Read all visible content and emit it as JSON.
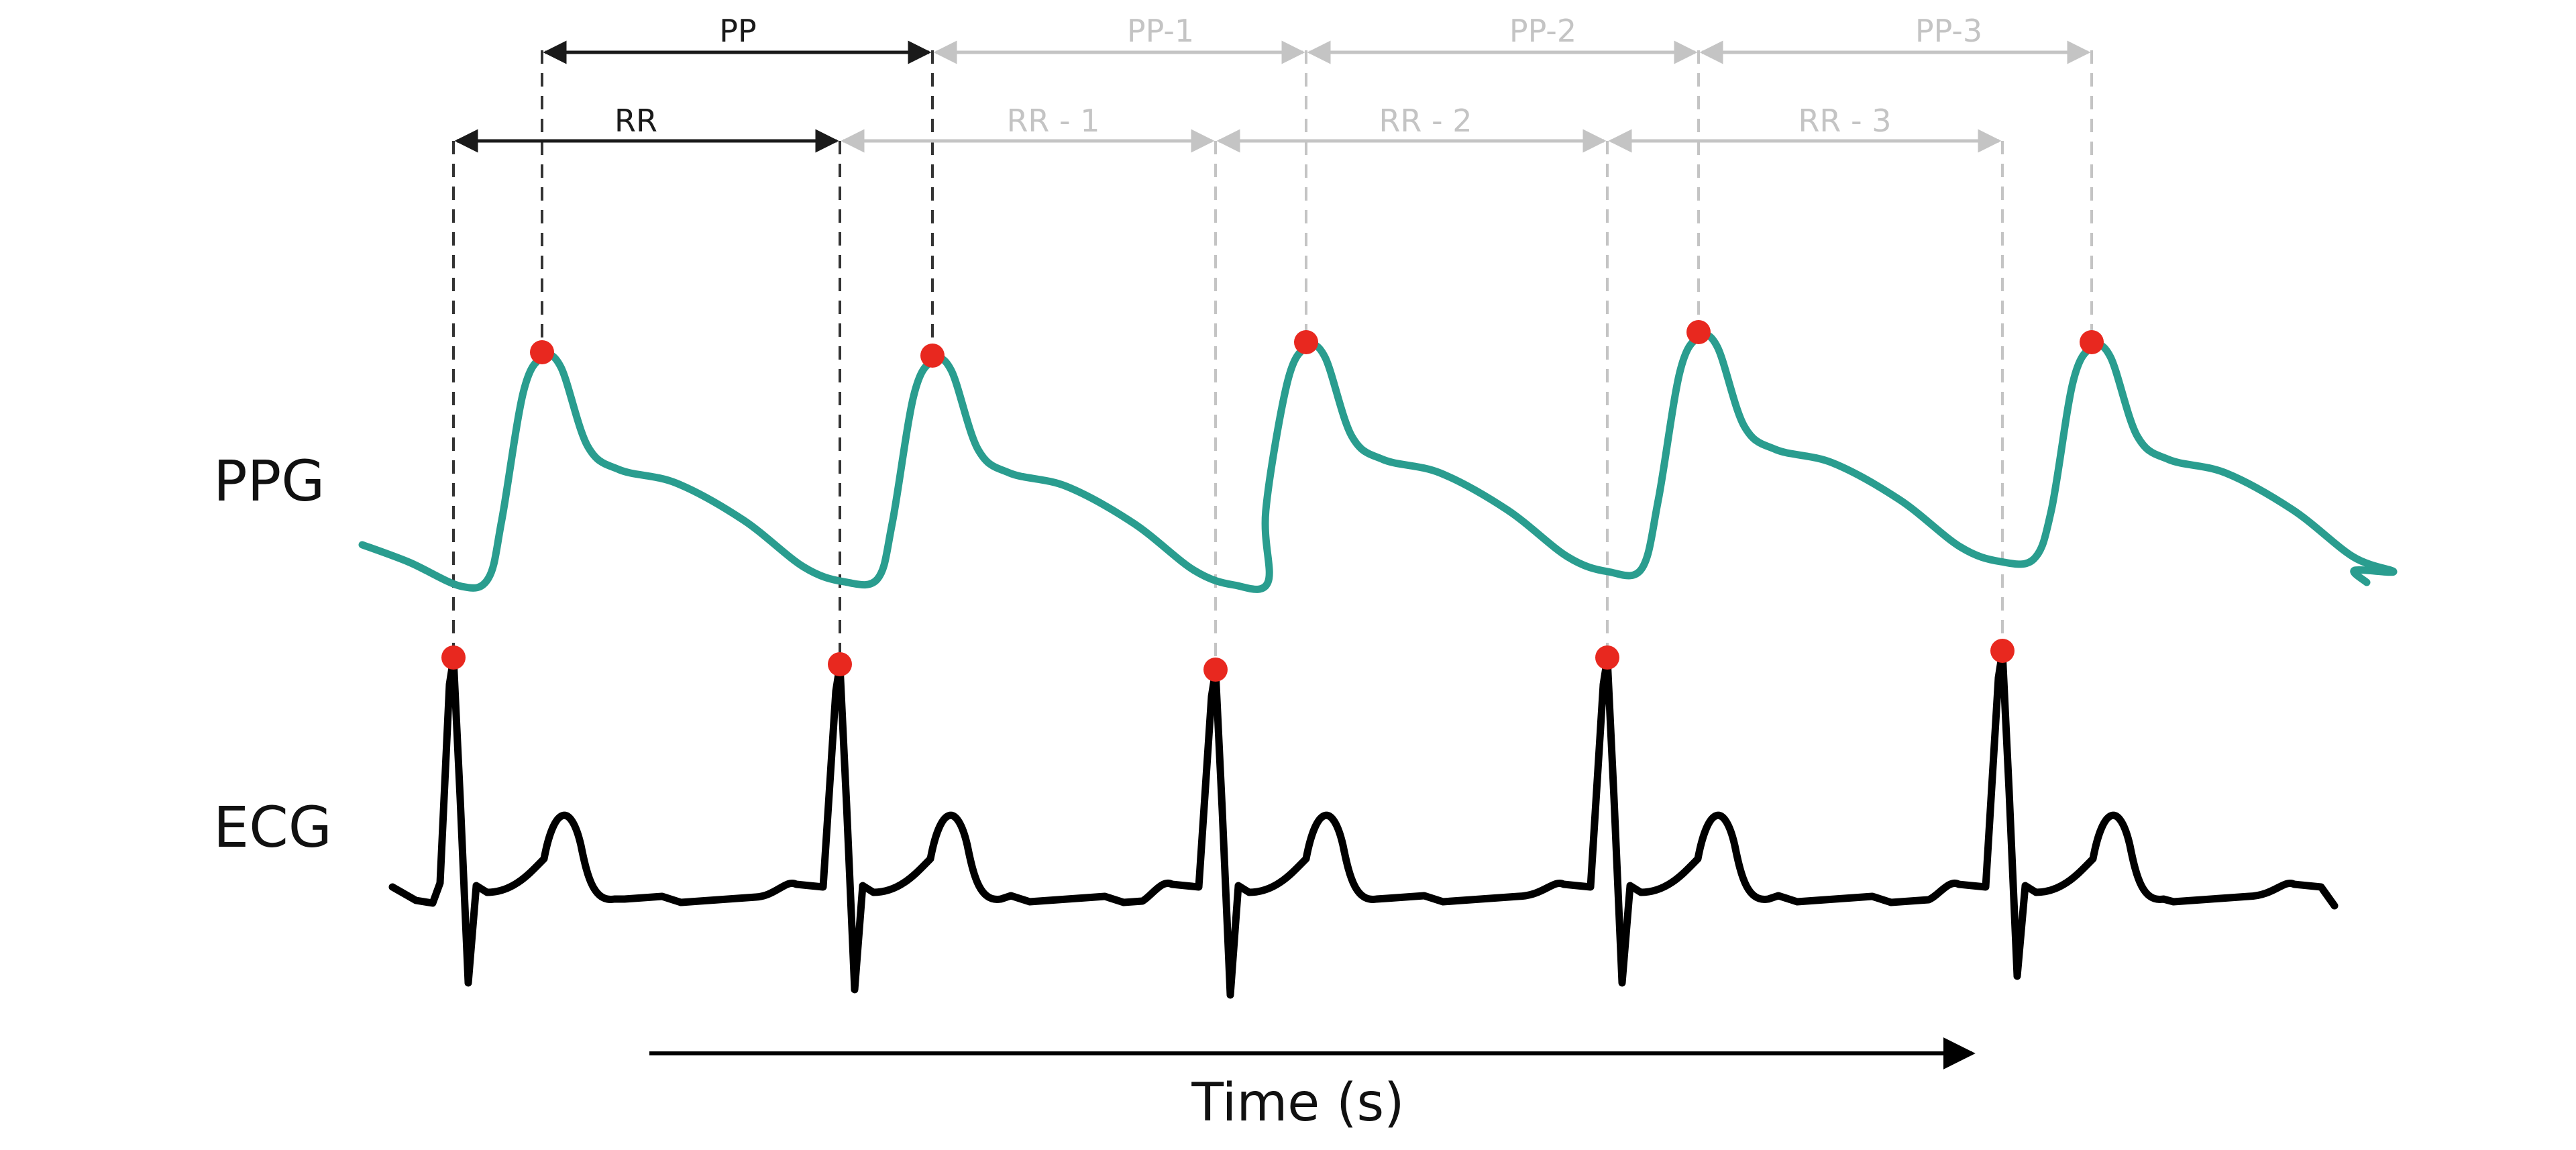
{
  "signals": {
    "ppg_label": "PPG",
    "ecg_label": "ECG"
  },
  "intervals": {
    "pp": [
      "PP",
      "PP-1",
      "PP-2",
      "PP-3"
    ],
    "rr": [
      "RR",
      "RR - 1",
      "RR - 2",
      "RR - 3"
    ]
  },
  "axis": {
    "time_label": "Time (s)"
  },
  "colors": {
    "ppg": "#2a9d8f",
    "ecg": "#000000",
    "peak": "#e8281f",
    "primary": "#1a1a1a",
    "faded": "#c4c4c4"
  }
}
